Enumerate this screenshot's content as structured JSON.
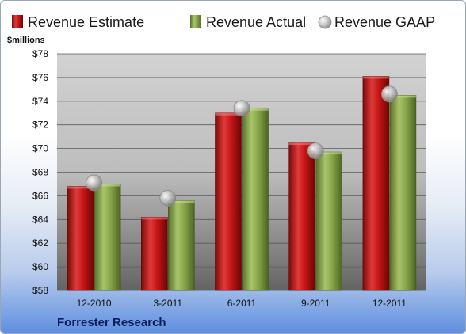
{
  "chart_data": {
    "type": "bar",
    "categories": [
      "12-2010",
      "3-2011",
      "6-2011",
      "9-2011",
      "12-2011"
    ],
    "series": [
      {
        "name": "Revenue Estimate",
        "values": [
          66.8,
          64.2,
          73.0,
          70.5,
          76.1
        ],
        "color": "#cc1f1f"
      },
      {
        "name": "Revenue Actual",
        "values": [
          67.0,
          65.6,
          73.4,
          69.7,
          74.5
        ],
        "color": "#8fae4f"
      },
      {
        "name": "Revenue GAAP",
        "values": [
          67.1,
          65.8,
          73.4,
          69.8,
          74.6
        ],
        "color": "#c4c4c4"
      }
    ],
    "ylabel": "$millions",
    "ylim": [
      58,
      78
    ],
    "yticks": [
      "$58",
      "$60",
      "$62",
      "$64",
      "$66",
      "$68",
      "$70",
      "$72",
      "$74",
      "$76",
      "$78"
    ],
    "grid": true,
    "legend": "top"
  },
  "footer": {
    "company": "Forrester Research"
  }
}
